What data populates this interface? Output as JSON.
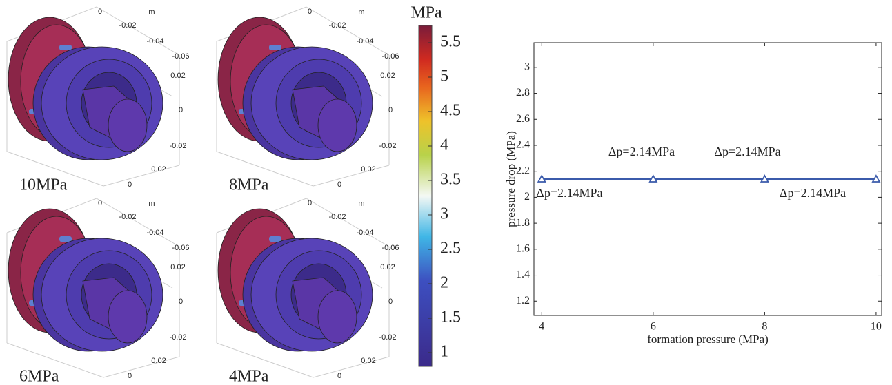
{
  "renders": [
    {
      "label": "10MPa",
      "ticks": [
        "0",
        "m",
        "-0.02",
        "-0.04",
        "-0.06",
        "0.02",
        "0",
        "-0.02",
        "0.02",
        "0"
      ]
    },
    {
      "label": "8MPa",
      "ticks": [
        "0",
        "m",
        "-0.02",
        "-0.04",
        "-0.06",
        "0.02",
        "0",
        "-0.02",
        "0.02",
        "0"
      ]
    },
    {
      "label": "6MPa",
      "ticks": [
        "0",
        "m",
        "-0.02",
        "-0.04",
        "-0.06",
        "0.02",
        "0",
        "-0.02",
        "0.02",
        "0"
      ]
    },
    {
      "label": "4MPa",
      "ticks": [
        "0",
        "m",
        "-0.02",
        "-0.04",
        "-0.06",
        "0.02",
        "0",
        "-0.02",
        "0.02",
        "0"
      ]
    }
  ],
  "colorbar": {
    "title": "MPa",
    "lim": [
      0.8,
      5.75
    ],
    "ticks": [
      1,
      1.5,
      2,
      2.5,
      3,
      3.5,
      4,
      4.5,
      5,
      5.5
    ]
  },
  "chart_data": {
    "type": "line",
    "x_label": "formation pressure (MPa)",
    "y_label": "pressure drop (MPa)",
    "x": [
      4,
      6,
      8,
      10
    ],
    "series": [
      {
        "color": "#3b5bab",
        "values": [
          2.14,
          2.14,
          2.14,
          2.14
        ],
        "value_labels": [
          "Δp=2.14MPa",
          "Δp=2.14MPa",
          "Δp=2.14MPa",
          "Δp=2.14MPa"
        ]
      }
    ],
    "xlim": [
      3.86,
      10.1
    ],
    "xticks": [
      4,
      6,
      8,
      10
    ],
    "ylim": [
      1.09,
      3.19
    ],
    "yticks": [
      1.2,
      1.4,
      1.6,
      1.8,
      2,
      2.2,
      2.4,
      2.6,
      2.8,
      3
    ]
  }
}
